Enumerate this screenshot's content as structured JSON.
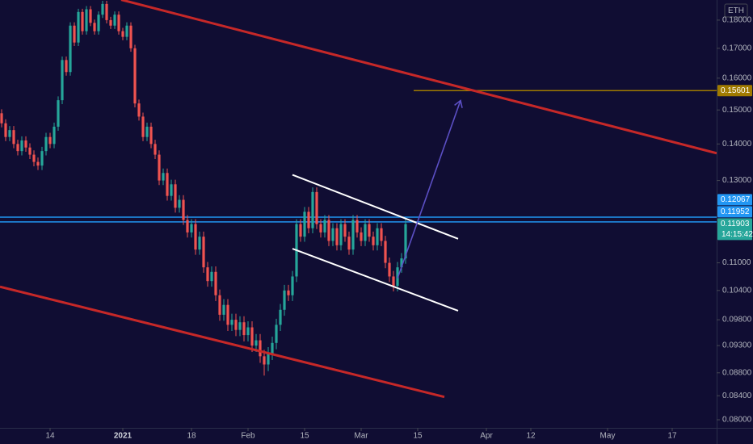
{
  "chart_data": {
    "type": "candlestick",
    "symbol": "ETH",
    "up_color": "#26a69a",
    "down_color": "#ef5350",
    "log_scale": true,
    "xlim": [
      -0.4,
      177
    ],
    "xticks": [
      {
        "value": 12,
        "label": "14"
      },
      {
        "value": 30,
        "label": "2021"
      },
      {
        "value": 47,
        "label": "18"
      },
      {
        "value": 61,
        "label": "Feb"
      },
      {
        "value": 75,
        "label": "15"
      },
      {
        "value": 89,
        "label": "Mar"
      },
      {
        "value": 103,
        "label": "15"
      },
      {
        "value": 120,
        "label": "Apr"
      },
      {
        "value": 131,
        "label": "12"
      },
      {
        "value": 150,
        "label": "May"
      },
      {
        "value": 166,
        "label": "17"
      }
    ],
    "ylim": [
      0.0787,
      0.1875
    ],
    "yticks": [
      {
        "value": 0.08,
        "label": "0.08000"
      },
      {
        "value": 0.084,
        "label": "0.08400"
      },
      {
        "value": 0.088,
        "label": "0.08800"
      },
      {
        "value": 0.093,
        "label": "0.09300"
      },
      {
        "value": 0.098,
        "label": "0.09800"
      },
      {
        "value": 0.104,
        "label": "0.10400"
      },
      {
        "value": 0.11,
        "label": "0.11000"
      },
      {
        "value": 0.13,
        "label": "0.13000"
      },
      {
        "value": 0.14,
        "label": "0.14000"
      },
      {
        "value": 0.15,
        "label": "0.15000"
      },
      {
        "value": 0.16,
        "label": "0.16000"
      },
      {
        "value": 0.17,
        "label": "0.17000"
      },
      {
        "value": 0.18,
        "label": "0.18000"
      }
    ],
    "x": [
      0,
      1,
      2,
      3,
      4,
      5,
      6,
      7,
      8,
      9,
      10,
      11,
      12,
      13,
      14,
      15,
      16,
      17,
      18,
      19,
      20,
      21,
      22,
      23,
      24,
      25,
      26,
      27,
      28,
      29,
      30,
      31,
      32,
      33,
      34,
      35,
      36,
      37,
      38,
      39,
      40,
      41,
      42,
      43,
      44,
      45,
      46,
      47,
      48,
      49,
      50,
      51,
      52,
      53,
      54,
      55,
      56,
      57,
      58,
      59,
      60,
      61,
      62,
      63,
      64,
      65,
      66,
      67,
      68,
      69,
      70,
      71,
      72,
      73,
      74,
      75,
      76,
      77,
      78,
      79,
      80,
      81,
      82,
      83,
      84,
      85,
      86,
      87,
      88,
      89,
      90,
      91,
      92,
      93,
      94,
      95,
      96,
      97,
      98,
      99,
      100
    ],
    "open": [
      0.149,
      0.146,
      0.142,
      0.144,
      0.14,
      0.138,
      0.141,
      0.139,
      0.137,
      0.135,
      0.134,
      0.138,
      0.142,
      0.14,
      0.145,
      0.153,
      0.166,
      0.162,
      0.178,
      0.172,
      0.183,
      0.176,
      0.184,
      0.179,
      0.176,
      0.182,
      0.186,
      0.18,
      0.178,
      0.182,
      0.176,
      0.174,
      0.178,
      0.17,
      0.152,
      0.148,
      0.142,
      0.145,
      0.14,
      0.137,
      0.13,
      0.132,
      0.126,
      0.129,
      0.123,
      0.125,
      0.12,
      0.117,
      0.119,
      0.113,
      0.116,
      0.109,
      0.106,
      0.108,
      0.103,
      0.099,
      0.101,
      0.097,
      0.098,
      0.096,
      0.0975,
      0.095,
      0.0965,
      0.093,
      0.094,
      0.091,
      0.0895,
      0.0915,
      0.0935,
      0.097,
      0.1,
      0.104,
      0.103,
      0.107,
      0.119,
      0.116,
      0.122,
      0.118,
      0.127,
      0.119,
      0.117,
      0.12,
      0.115,
      0.118,
      0.114,
      0.119,
      0.116,
      0.113,
      0.12,
      0.117,
      0.115,
      0.119,
      0.116,
      0.114,
      0.118,
      0.115,
      0.11,
      0.107,
      0.105,
      0.109,
      0.111
    ],
    "high": [
      0.1502,
      0.1472,
      0.1452,
      0.1452,
      0.1412,
      0.1422,
      0.1422,
      0.1402,
      0.1382,
      0.1362,
      0.1392,
      0.1432,
      0.1432,
      0.1462,
      0.1542,
      0.1672,
      0.1672,
      0.1792,
      0.1792,
      0.1842,
      0.1842,
      0.1852,
      0.1852,
      0.1802,
      0.1832,
      0.1872,
      0.1872,
      0.1812,
      0.1832,
      0.1832,
      0.1772,
      0.1792,
      0.1792,
      0.1712,
      0.1532,
      0.1492,
      0.1462,
      0.1462,
      0.1412,
      0.1382,
      0.1332,
      0.1332,
      0.1302,
      0.1302,
      0.1262,
      0.1262,
      0.1212,
      0.1202,
      0.1202,
      0.1172,
      0.1172,
      0.1102,
      0.1092,
      0.1092,
      0.1042,
      0.1022,
      0.1022,
      0.0992,
      0.0992,
      0.0987,
      0.0987,
      0.0977,
      0.0977,
      0.0952,
      0.0952,
      0.0922,
      0.0927,
      0.0947,
      0.0982,
      0.1012,
      0.1052,
      0.1052,
      0.1082,
      0.1202,
      0.1202,
      0.1232,
      0.1232,
      0.1282,
      0.1282,
      0.1202,
      0.1212,
      0.1212,
      0.1192,
      0.1192,
      0.1202,
      0.1202,
      0.1172,
      0.1212,
      0.1212,
      0.1182,
      0.1202,
      0.1202,
      0.1172,
      0.1192,
      0.1192,
      0.1162,
      0.1112,
      0.1082,
      0.1102,
      0.1122,
      0.1202
    ],
    "low": [
      0.1448,
      0.1408,
      0.1408,
      0.1388,
      0.1368,
      0.1368,
      0.1378,
      0.1358,
      0.1338,
      0.1328,
      0.1328,
      0.1368,
      0.1388,
      0.1388,
      0.1438,
      0.1518,
      0.1608,
      0.1608,
      0.1708,
      0.1708,
      0.1748,
      0.1748,
      0.1778,
      0.1748,
      0.1748,
      0.1808,
      0.1788,
      0.1768,
      0.1768,
      0.1748,
      0.1728,
      0.1728,
      0.1688,
      0.1508,
      0.1468,
      0.1408,
      0.1408,
      0.1388,
      0.1358,
      0.1288,
      0.1288,
      0.1248,
      0.1248,
      0.1218,
      0.1218,
      0.1188,
      0.1158,
      0.1158,
      0.1118,
      0.1118,
      0.1078,
      0.1048,
      0.1048,
      0.1018,
      0.0978,
      0.0978,
      0.0958,
      0.0958,
      0.0948,
      0.0948,
      0.0938,
      0.0938,
      0.0918,
      0.0918,
      0.0898,
      0.0875,
      0.0883,
      0.0903,
      0.0923,
      0.0958,
      0.0988,
      0.1018,
      0.1018,
      0.1058,
      0.1148,
      0.1148,
      0.1168,
      0.1168,
      0.1178,
      0.1158,
      0.1158,
      0.1138,
      0.1138,
      0.1128,
      0.1128,
      0.1148,
      0.1118,
      0.1118,
      0.1158,
      0.1138,
      0.1138,
      0.1148,
      0.1128,
      0.1128,
      0.1138,
      0.1088,
      0.1058,
      0.1038,
      0.1038,
      0.1078,
      0.1098
    ],
    "close": [
      0.146,
      0.142,
      0.144,
      0.14,
      0.138,
      0.141,
      0.139,
      0.137,
      0.135,
      0.134,
      0.138,
      0.142,
      0.14,
      0.145,
      0.153,
      0.166,
      0.162,
      0.178,
      0.172,
      0.183,
      0.176,
      0.184,
      0.179,
      0.176,
      0.182,
      0.186,
      0.18,
      0.178,
      0.182,
      0.176,
      0.174,
      0.178,
      0.17,
      0.152,
      0.148,
      0.142,
      0.145,
      0.14,
      0.137,
      0.13,
      0.132,
      0.126,
      0.129,
      0.123,
      0.125,
      0.12,
      0.117,
      0.119,
      0.113,
      0.116,
      0.109,
      0.106,
      0.108,
      0.103,
      0.099,
      0.101,
      0.097,
      0.098,
      0.096,
      0.0975,
      0.095,
      0.0965,
      0.093,
      0.094,
      0.091,
      0.0895,
      0.0915,
      0.0935,
      0.097,
      0.1,
      0.104,
      0.103,
      0.107,
      0.119,
      0.116,
      0.122,
      0.118,
      0.127,
      0.119,
      0.117,
      0.12,
      0.115,
      0.118,
      0.114,
      0.119,
      0.116,
      0.113,
      0.12,
      0.117,
      0.115,
      0.119,
      0.116,
      0.114,
      0.118,
      0.115,
      0.11,
      0.107,
      0.105,
      0.109,
      0.111,
      0.119
    ],
    "levels": [
      {
        "value": 0.15601,
        "color": "#a07a00",
        "start": 102
      },
      {
        "value": 0.12067,
        "color": "#2196f3"
      },
      {
        "value": 0.11952,
        "color": "#2196f3"
      }
    ],
    "current_price": {
      "value": 0.11903,
      "countdown": "14:15:42",
      "color": "#26a69a"
    },
    "trend_lines": [
      {
        "color": "#c62828",
        "points": [
          [
            29.6,
            0.1876
          ],
          [
            177,
            0.1374
          ]
        ]
      },
      {
        "color": "#c62828",
        "points": [
          [
            -0.4,
            0.1048
          ],
          [
            109.6,
            0.0838
          ]
        ]
      },
      {
        "color": "#ffffff",
        "points": [
          [
            72,
            0.1315
          ],
          [
            113,
            0.1155
          ]
        ]
      },
      {
        "color": "#ffffff",
        "points": [
          [
            72,
            0.1132
          ],
          [
            113,
            0.0998
          ]
        ]
      }
    ],
    "arrow": {
      "color": "#5b4fc4",
      "points": [
        [
          98,
          0.1066
        ],
        [
          113.6,
          0.1529
        ]
      ]
    }
  }
}
